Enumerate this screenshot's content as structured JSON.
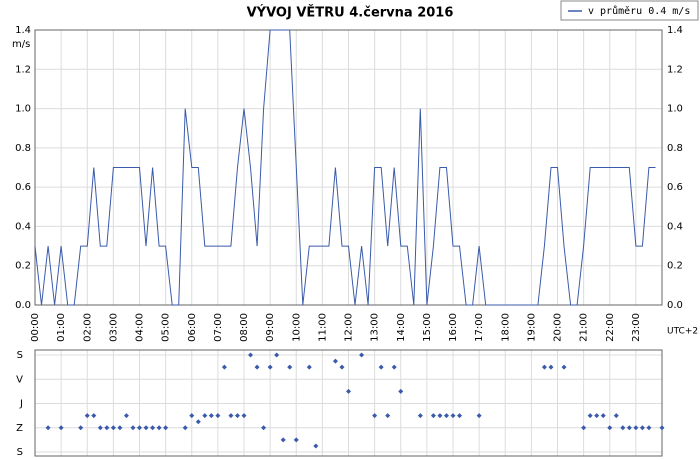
{
  "title": "VÝVOJ VĚTRU  4.června 2016",
  "chart_data": [
    {
      "type": "line",
      "y_label": "m/s",
      "x_label": "UTC+2",
      "xlim": [
        0,
        24
      ],
      "xticks": [
        {
          "value": 0,
          "label": "00:00"
        },
        {
          "value": 1,
          "label": "01:00"
        },
        {
          "value": 2,
          "label": "02:00"
        },
        {
          "value": 3,
          "label": "03:00"
        },
        {
          "value": 4,
          "label": "04:00"
        },
        {
          "value": 5,
          "label": "05:00"
        },
        {
          "value": 6,
          "label": "06:00"
        },
        {
          "value": 7,
          "label": "07:00"
        },
        {
          "value": 8,
          "label": "08:00"
        },
        {
          "value": 9,
          "label": "09:00"
        },
        {
          "value": 10,
          "label": "10:00"
        },
        {
          "value": 11,
          "label": "11:00"
        },
        {
          "value": 12,
          "label": "12:00"
        },
        {
          "value": 13,
          "label": "13:00"
        },
        {
          "value": 14,
          "label": "14:00"
        },
        {
          "value": 15,
          "label": "15:00"
        },
        {
          "value": 16,
          "label": "16:00"
        },
        {
          "value": 17,
          "label": "17:00"
        },
        {
          "value": 18,
          "label": "18:00"
        },
        {
          "value": 19,
          "label": "19:00"
        },
        {
          "value": 20,
          "label": "20:00"
        },
        {
          "value": 21,
          "label": "21:00"
        },
        {
          "value": 22,
          "label": "22:00"
        },
        {
          "value": 23,
          "label": "23:00"
        }
      ],
      "ylim": [
        0,
        1.4
      ],
      "yticks": [
        {
          "value": 0,
          "label": "0.0"
        },
        {
          "value": 0.2,
          "label": "0.2"
        },
        {
          "value": 0.4,
          "label": "0.4"
        },
        {
          "value": 0.6,
          "label": "0.6"
        },
        {
          "value": 0.8,
          "label": "0.8"
        },
        {
          "value": 1,
          "label": "1.0"
        },
        {
          "value": 1.2,
          "label": "1.2"
        },
        {
          "value": 1.4,
          "label": "1.4"
        }
      ],
      "grid": true,
      "legend": "top-right",
      "x": [
        0,
        0.25,
        0.5,
        0.75,
        1,
        1.25,
        1.5,
        1.75,
        2,
        2.25,
        2.5,
        2.75,
        3,
        4,
        4.25,
        4.5,
        4.75,
        5,
        5.25,
        5.5,
        5.75,
        6,
        6.25,
        6.5,
        7.5,
        7.75,
        8,
        8.25,
        8.5,
        8.75,
        9,
        9.75,
        10,
        10.25,
        10.5,
        11.25,
        11.5,
        11.75,
        12,
        12.25,
        12.5,
        12.75,
        13,
        13.25,
        13.5,
        13.75,
        14,
        14.25,
        14.5,
        14.75,
        15,
        15.25,
        15.5,
        15.75,
        16,
        16.25,
        16.5,
        16.75,
        17,
        17.25,
        19.25,
        19.5,
        19.75,
        20,
        20.25,
        20.5,
        20.75,
        21,
        21.25,
        22.75,
        23,
        23.25,
        23.5,
        23.75
      ],
      "series": [
        {
          "name": "v průměru 0.4 m/s",
          "color": "#3a5bab",
          "values": [
            0.3,
            0,
            0.3,
            0,
            0.3,
            0,
            0,
            0.3,
            0.3,
            0.7,
            0.3,
            0.3,
            0.7,
            0.7,
            0.3,
            0.7,
            0.3,
            0.3,
            0,
            0,
            1.0,
            0.7,
            0.7,
            0.3,
            0.3,
            0.7,
            1.0,
            0.7,
            0.3,
            1.0,
            1.4,
            1.4,
            0.7,
            0,
            0.3,
            0.3,
            0.7,
            0.3,
            0.3,
            0,
            0.3,
            0,
            0.7,
            0.7,
            0.3,
            0.7,
            0.3,
            0.3,
            0,
            1.0,
            0,
            0.3,
            0.7,
            0.7,
            0.3,
            0.3,
            0,
            0,
            0.3,
            0,
            0,
            0.3,
            0.7,
            0.7,
            0.3,
            0,
            0,
            0.3,
            0.7,
            0.7,
            0.3,
            0.3,
            0.7,
            0.7
          ]
        }
      ]
    },
    {
      "type": "scatter",
      "xlim": [
        0,
        24
      ],
      "xticks": [
        0,
        1,
        2,
        3,
        4,
        5,
        6,
        7,
        8,
        9,
        10,
        11,
        12,
        13,
        14,
        15,
        16,
        17,
        18,
        19,
        20,
        21,
        22,
        23
      ],
      "ylim": [
        0,
        360
      ],
      "invert_y": true,
      "yticks": [
        {
          "value": 0,
          "label": "S"
        },
        {
          "value": 90,
          "label": "V"
        },
        {
          "value": 180,
          "label": "J"
        },
        {
          "value": 270,
          "label": "Z"
        },
        {
          "value": 360,
          "label": "S"
        }
      ],
      "grid": true,
      "color": "#3a5bab",
      "x": [
        0.5,
        1,
        1.75,
        2,
        2.25,
        2.5,
        2.75,
        3,
        3.25,
        3.5,
        3.75,
        4,
        4.25,
        4.5,
        4.75,
        5,
        5.75,
        6,
        6.25,
        6.5,
        6.75,
        7,
        7.25,
        7.5,
        7.75,
        8,
        8.25,
        8.5,
        8.75,
        9,
        9.25,
        9.5,
        9.75,
        10,
        10.5,
        10.75,
        11.5,
        11.75,
        12,
        12.5,
        13,
        13.25,
        13.5,
        13.75,
        14,
        14.75,
        15.25,
        15.5,
        15.75,
        16,
        16.25,
        17,
        19.5,
        19.75,
        20.25,
        21,
        21.25,
        21.5,
        21.75,
        22,
        22.25,
        22.5,
        22.75,
        23,
        23.25,
        23.5,
        24
      ],
      "values": [
        270,
        270,
        270,
        225,
        225,
        270,
        270,
        270,
        270,
        225,
        270,
        270,
        270,
        270,
        270,
        270,
        270,
        225,
        247.5,
        225,
        225,
        225,
        45,
        225,
        225,
        225,
        0,
        45,
        270,
        45,
        0,
        315,
        45,
        315,
        45,
        337.5,
        22.5,
        45,
        135,
        0,
        225,
        45,
        225,
        45,
        135,
        225,
        225,
        225,
        225,
        225,
        225,
        225,
        45,
        45,
        45,
        270,
        225,
        225,
        225,
        270,
        225,
        270,
        270,
        270,
        270,
        270,
        270
      ]
    }
  ]
}
